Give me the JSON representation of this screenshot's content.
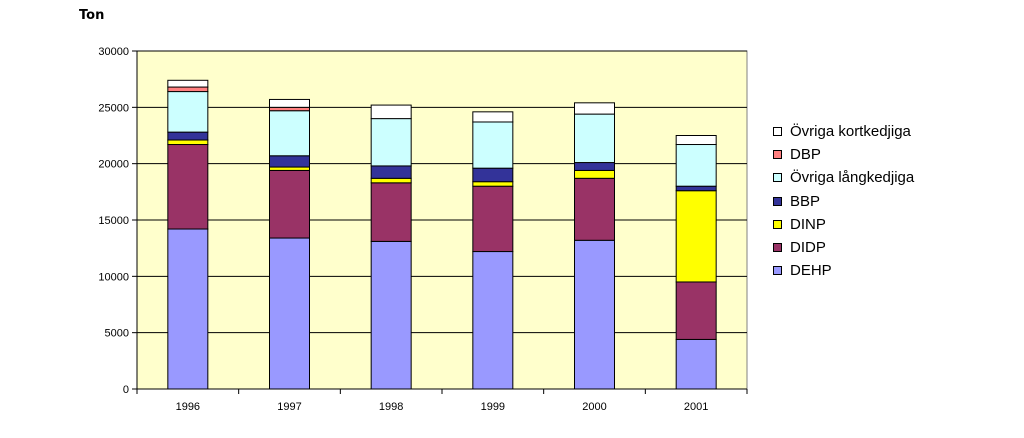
{
  "chart_data": {
    "type": "bar",
    "stacked": true,
    "ylabel": "Ton",
    "xlabel": "",
    "ylim": [
      0,
      30000
    ],
    "yticks": [
      0,
      5000,
      10000,
      15000,
      20000,
      25000,
      30000
    ],
    "categories": [
      "1996",
      "1997",
      "1998",
      "1999",
      "2000",
      "2001"
    ],
    "plot_background": "#FFFFCC",
    "grid": true,
    "legend_position": "right",
    "series": [
      {
        "name": "DEHP",
        "color": "#9999FF",
        "values": [
          14200,
          13400,
          13100,
          12200,
          13200,
          4400
        ]
      },
      {
        "name": "DIDP",
        "color": "#993366",
        "values": [
          7500,
          6000,
          5200,
          5800,
          5500,
          5100
        ]
      },
      {
        "name": "DINP",
        "color": "#FFFF00",
        "values": [
          400,
          300,
          400,
          400,
          700,
          8100
        ]
      },
      {
        "name": "BBP",
        "color": "#333399",
        "values": [
          700,
          1000,
          1100,
          1200,
          700,
          400
        ]
      },
      {
        "name": "Övriga långkedjiga",
        "color": "#CCFFFF",
        "values": [
          3600,
          4000,
          4200,
          4100,
          4300,
          3700
        ]
      },
      {
        "name": "DBP",
        "color": "#FF8080",
        "values": [
          400,
          300,
          0,
          0,
          0,
          0
        ]
      },
      {
        "name": "Övriga kortkedjiga",
        "color": "#FFFFFF",
        "values": [
          600,
          700,
          1200,
          900,
          1000,
          800
        ]
      }
    ],
    "legend_order": [
      "Övriga kortkedjiga",
      "DBP",
      "Övriga långkedjiga",
      "BBP",
      "DINP",
      "DIDP",
      "DEHP"
    ]
  }
}
